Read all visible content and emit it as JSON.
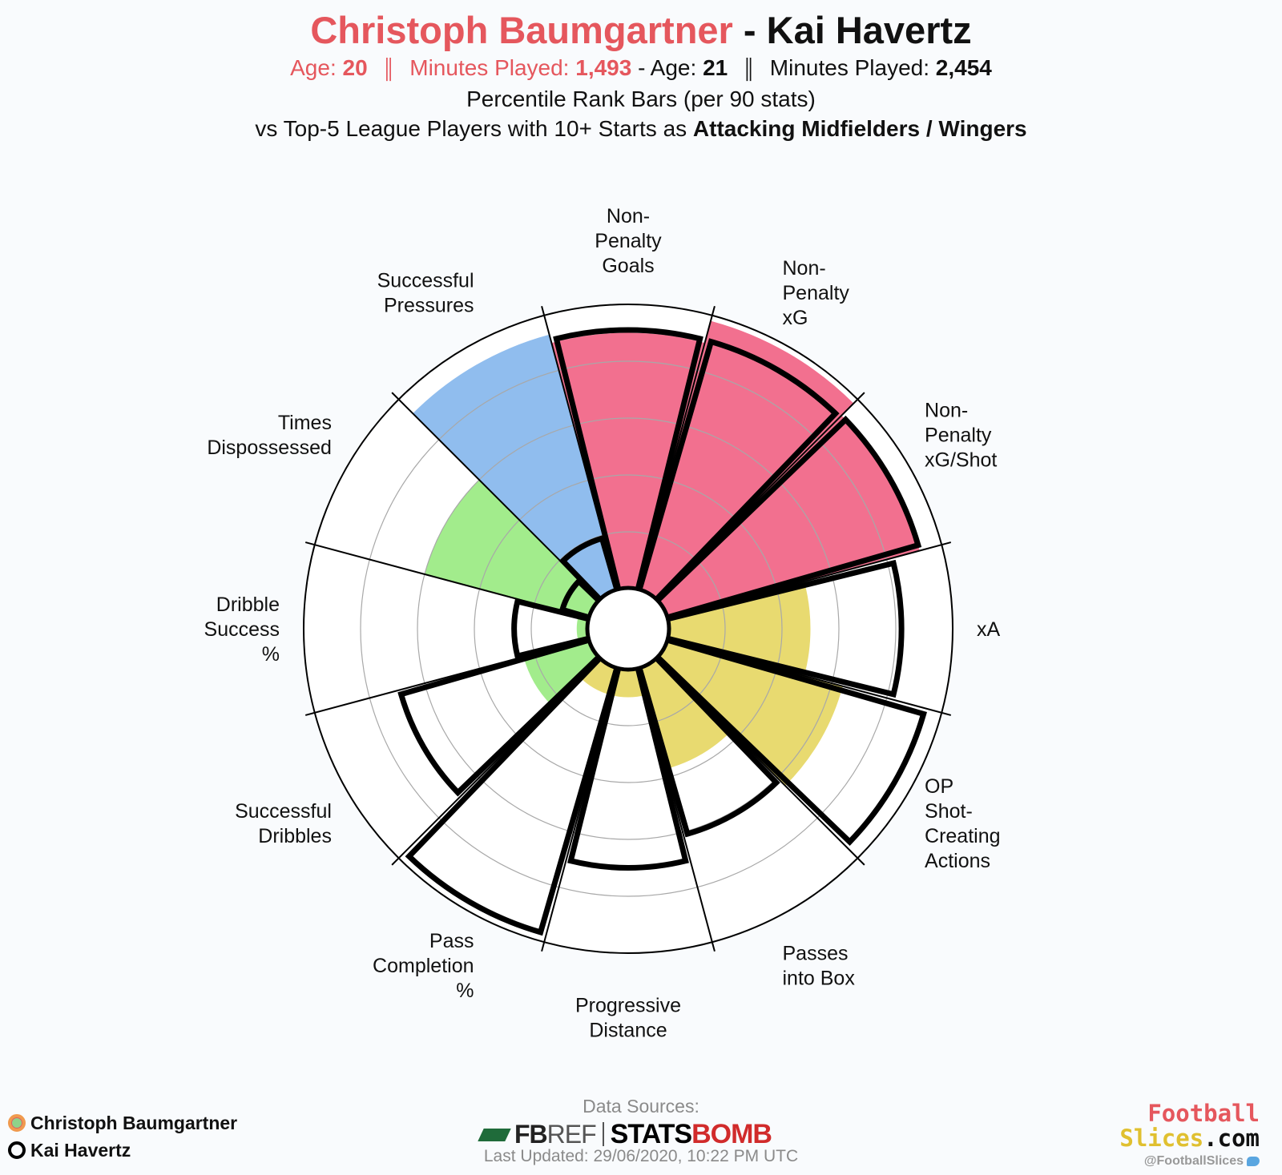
{
  "header": {
    "player1_name": "Christoph Baumgartner",
    "separator": "-",
    "player2_name": "Kai Havertz",
    "age_label": "Age:",
    "minutes_label": "Minutes Played:",
    "player1_age": "20",
    "player1_minutes": "1,493",
    "player2_age": "21",
    "player2_minutes": "2,454",
    "divider": "║",
    "dash": "-",
    "line3": "Percentile Rank Bars (per 90 stats)",
    "line4_prefix": "vs Top-5 League Players with 10+ Starts as",
    "line4_bold": "Attacking Midfielders / Wingers"
  },
  "chart_data": {
    "type": "polar-bar",
    "rlim": [
      0,
      100
    ],
    "grid_rings": [
      20,
      40,
      60,
      80
    ],
    "categories": [
      {
        "name": "Non-Penalty Goals",
        "lines": [
          "Non-",
          "Penalty",
          "Goals"
        ]
      },
      {
        "name": "Non-Penalty xG",
        "lines": [
          "Non-",
          "Penalty",
          "xG"
        ]
      },
      {
        "name": "Non-Penalty xG/Shot",
        "lines": [
          "Non-",
          "Penalty",
          "xG/Shot"
        ]
      },
      {
        "name": "xA",
        "lines": [
          "xA"
        ]
      },
      {
        "name": "OP Shot-Creating Actions",
        "lines": [
          "OP",
          "Shot-",
          "Creating",
          "Actions"
        ]
      },
      {
        "name": "Passes into Box",
        "lines": [
          "Passes",
          "into Box"
        ]
      },
      {
        "name": "Progressive Distance",
        "lines": [
          "Progressive",
          "Distance"
        ]
      },
      {
        "name": "Pass Completion %",
        "lines": [
          "Pass",
          "Completion",
          "%"
        ]
      },
      {
        "name": "Successful Dribbles",
        "lines": [
          "Successful",
          "Dribbles"
        ]
      },
      {
        "name": "Dribble Success %",
        "lines": [
          "Dribble",
          "Success",
          "%"
        ]
      },
      {
        "name": "Times Dispossessed",
        "lines": [
          "Times",
          "Dispossessed"
        ]
      },
      {
        "name": "Successful Pressures",
        "lines": [
          "Successful",
          "Pressures"
        ]
      }
    ],
    "series": [
      {
        "name": "Christoph Baumgartner",
        "style": "filled",
        "values": [
          90,
          98,
          92,
          50,
          64,
          37,
          10,
          10,
          24,
          4,
          60,
          93
        ]
      },
      {
        "name": "Kai Havertz",
        "style": "outline",
        "values": [
          91,
          91,
          92,
          82,
          94,
          61,
          70,
          97,
          69,
          26,
          10,
          19
        ]
      }
    ],
    "fill_colors": [
      "#f2708f",
      "#f2708f",
      "#f2708f",
      "#e8da70",
      "#e8da70",
      "#e8da70",
      "#e8da70",
      "#e8da70",
      "#a2ec8c",
      "#a2ec8c",
      "#a2ec8c",
      "#90bdee"
    ],
    "outline_color": "#000000",
    "legend_position": "bottom-left"
  },
  "legend": {
    "player1": "Christoph Baumgartner",
    "player2": "Kai Havertz"
  },
  "footer": {
    "data_sources": "Data Sources:",
    "fbref_fb": "FB",
    "fbref_ref": "REF",
    "statsbomb_a": "STATS",
    "statsbomb_b": "BOMB",
    "last_updated": "Last Updated: 29/06/2020, 10:22 PM UTC"
  },
  "brand": {
    "line1": "Football",
    "line2a": "Slices",
    "line2b": ".com",
    "handle": "@FootballSlices"
  }
}
